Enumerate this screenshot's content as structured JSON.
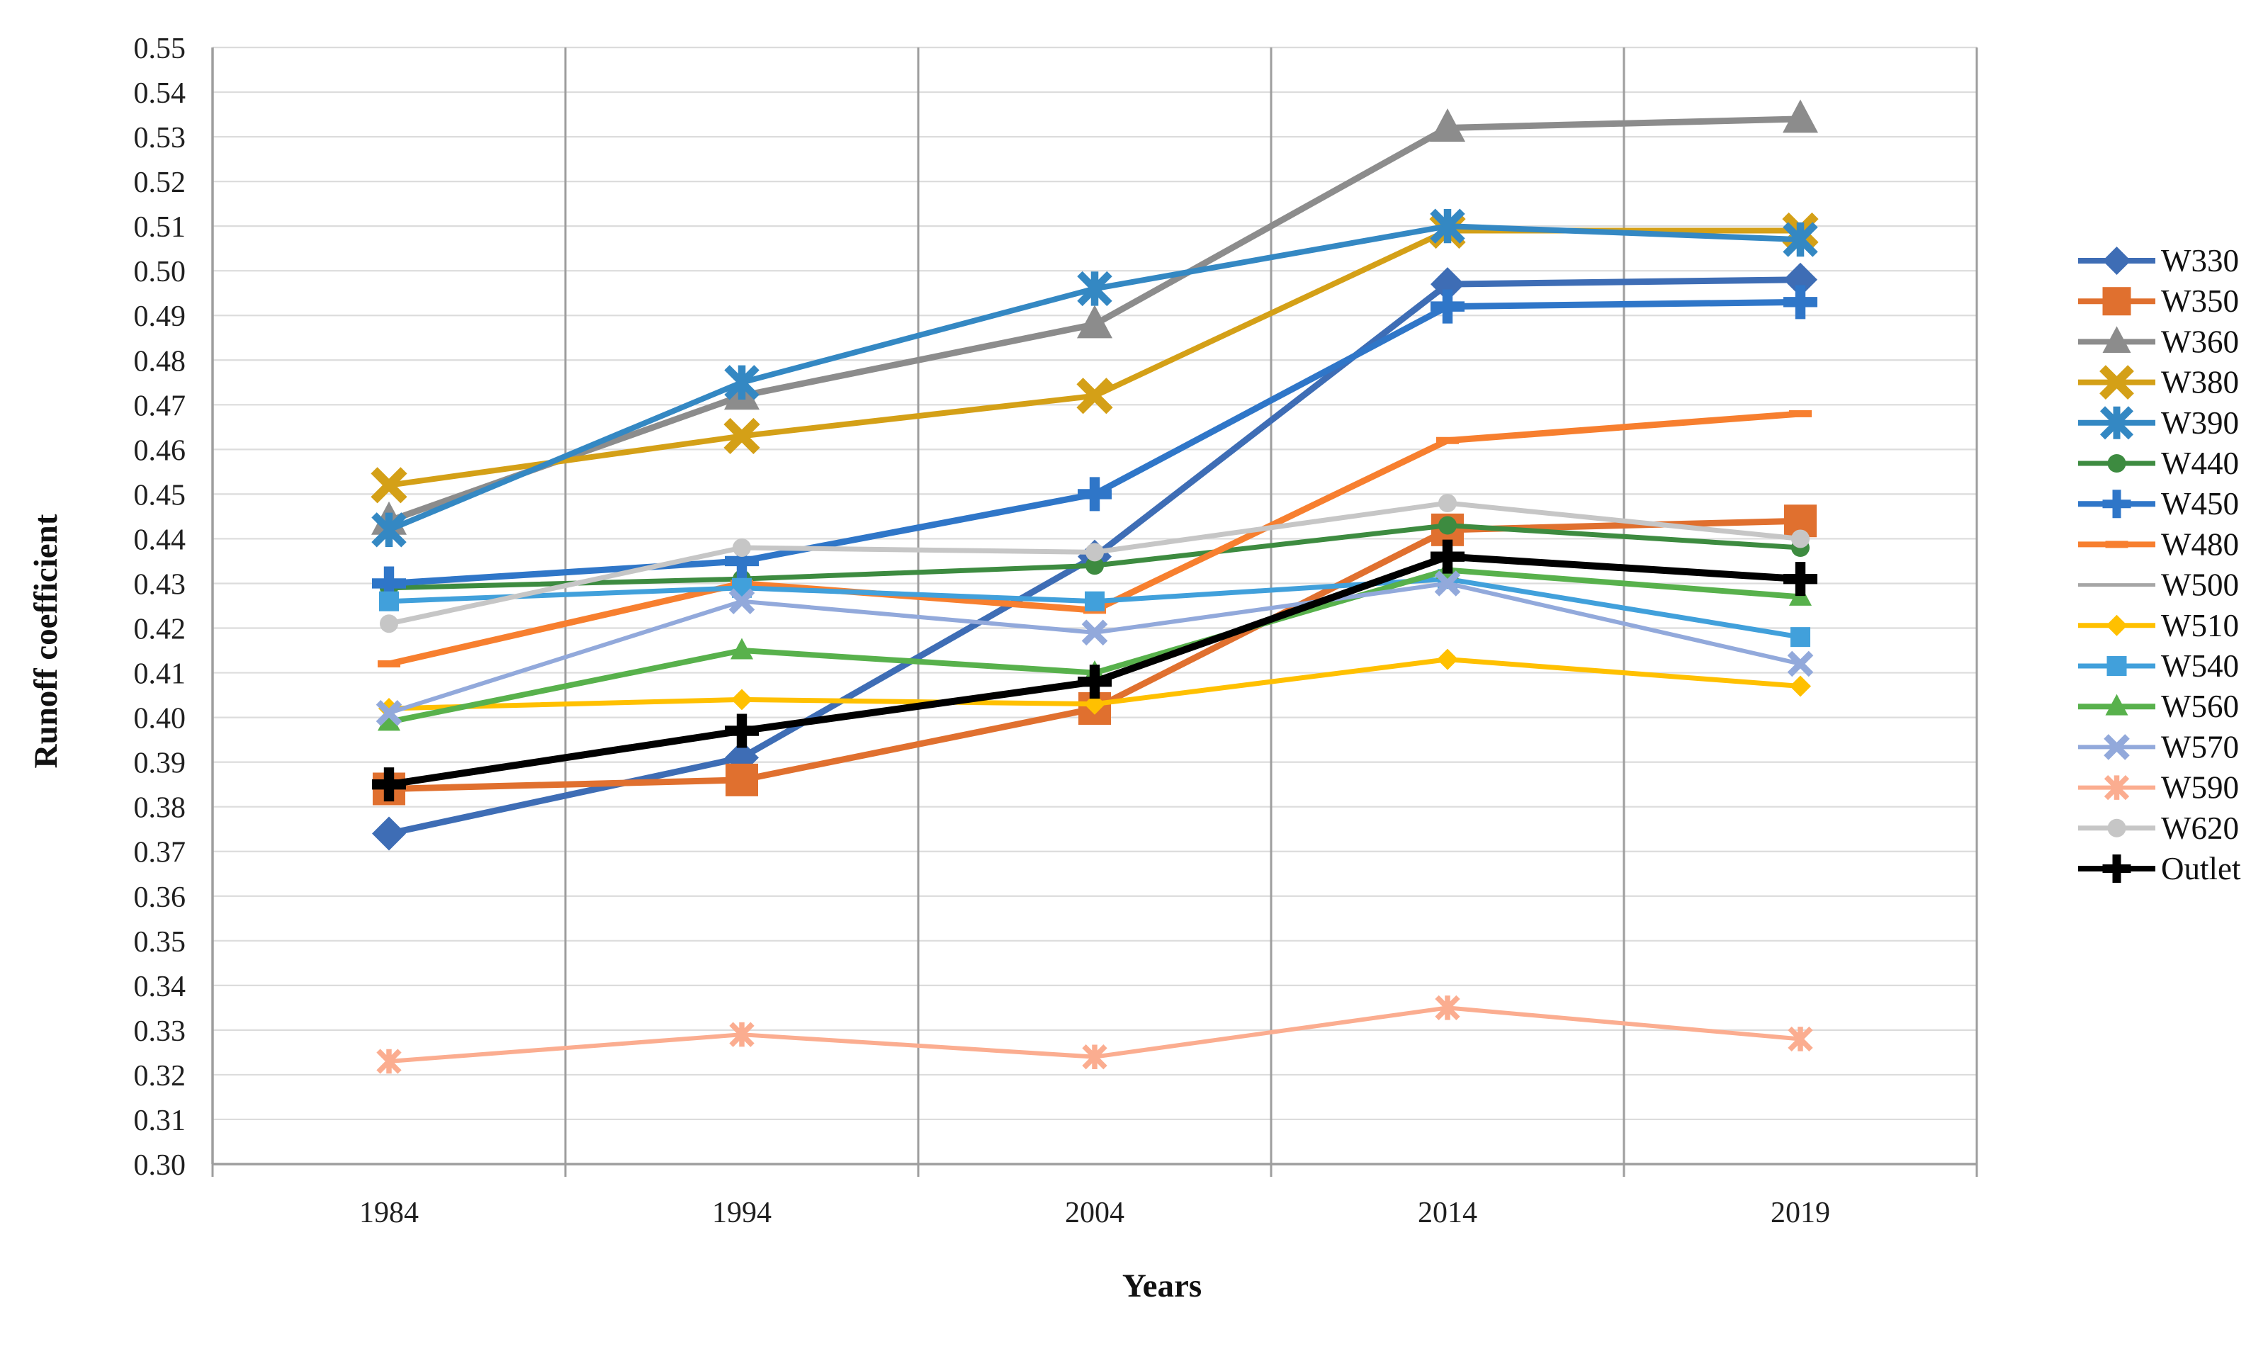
{
  "figure": {
    "background_color": "#FFFFFF",
    "grid_h_color": "#DCDCDC",
    "grid_v_color": "#9E9E9E",
    "axis_line_color": "#9E9E9E",
    "text_color": "#1f1f1f"
  },
  "chart_data": {
    "type": "line",
    "title": "",
    "xlabel": "Years",
    "ylabel": "Runoff coefficient",
    "x_categories": [
      "1984",
      "1994",
      "2004",
      "2014",
      "2019"
    ],
    "y_axis": {
      "min": 0.3,
      "max": 0.55,
      "step": 0.01,
      "decimals": 2
    },
    "grid": {
      "horizontal": true,
      "vertical": true
    },
    "legend_position": "right",
    "series": [
      {
        "name": "W330",
        "color": "#3E6DB5",
        "marker": "diamond",
        "marker_size": 24,
        "line_width": 9,
        "values": [
          0.374,
          0.391,
          0.436,
          0.497,
          0.498
        ]
      },
      {
        "name": "W350",
        "color": "#E0702F",
        "marker": "square",
        "marker_size": 23,
        "line_width": 9,
        "values": [
          0.384,
          0.386,
          0.402,
          0.442,
          0.444
        ]
      },
      {
        "name": "W360",
        "color": "#8C8C8C",
        "marker": "triangle",
        "marker_size": 25,
        "line_width": 9,
        "values": [
          0.444,
          0.472,
          0.488,
          0.532,
          0.534
        ]
      },
      {
        "name": "W380",
        "color": "#D4A017",
        "marker": "x",
        "marker_size": 21,
        "line_width": 8,
        "values": [
          0.452,
          0.463,
          0.472,
          0.509,
          0.509
        ]
      },
      {
        "name": "W390",
        "color": "#3488C3",
        "marker": "star",
        "marker_size": 21,
        "line_width": 8,
        "values": [
          0.442,
          0.475,
          0.496,
          0.51,
          0.507
        ]
      },
      {
        "name": "W440",
        "color": "#3D8B40",
        "marker": "circle",
        "marker_size": 13,
        "line_width": 7,
        "values": [
          0.429,
          0.431,
          0.434,
          0.443,
          0.438
        ]
      },
      {
        "name": "W450",
        "color": "#2F76C8",
        "marker": "plus",
        "marker_size": 24,
        "line_width": 9,
        "values": [
          0.43,
          0.435,
          0.45,
          0.492,
          0.493
        ]
      },
      {
        "name": "W480",
        "color": "#F77F2F",
        "marker": "dash",
        "marker_size": 16,
        "line_width": 9,
        "values": [
          0.412,
          0.43,
          0.424,
          0.462,
          0.468
        ]
      },
      {
        "name": "W500",
        "color": "#A6A6A6",
        "marker": "none",
        "marker_size": 0,
        "line_width": 5,
        "values": [
          0.421,
          0.438,
          0.437,
          0.448,
          0.44
        ]
      },
      {
        "name": "W510",
        "color": "#FFC000",
        "marker": "diamond",
        "marker_size": 15,
        "line_width": 7,
        "values": [
          0.402,
          0.404,
          0.403,
          0.413,
          0.407
        ]
      },
      {
        "name": "W540",
        "color": "#41A0DB",
        "marker": "square",
        "marker_size": 14,
        "line_width": 7,
        "values": [
          0.426,
          0.429,
          0.426,
          0.431,
          0.418
        ]
      },
      {
        "name": "W560",
        "color": "#58B14C",
        "marker": "triangle",
        "marker_size": 16,
        "line_width": 8,
        "values": [
          0.399,
          0.415,
          0.41,
          0.433,
          0.427
        ]
      },
      {
        "name": "W570",
        "color": "#92A9DB",
        "marker": "x",
        "marker_size": 15,
        "line_width": 6,
        "values": [
          0.401,
          0.426,
          0.419,
          0.43,
          0.412
        ]
      },
      {
        "name": "W590",
        "color": "#FBAD90",
        "marker": "star",
        "marker_size": 15,
        "line_width": 6,
        "values": [
          0.323,
          0.329,
          0.324,
          0.335,
          0.328
        ]
      },
      {
        "name": "W620",
        "color": "#C6C6C6",
        "marker": "circle",
        "marker_size": 13,
        "line_width": 7,
        "values": [
          0.421,
          0.438,
          0.437,
          0.448,
          0.44
        ]
      },
      {
        "name": "Outlet",
        "color": "#000000",
        "marker": "plus",
        "marker_size": 24,
        "line_width": 10,
        "values": [
          0.385,
          0.397,
          0.408,
          0.436,
          0.431
        ]
      }
    ]
  }
}
